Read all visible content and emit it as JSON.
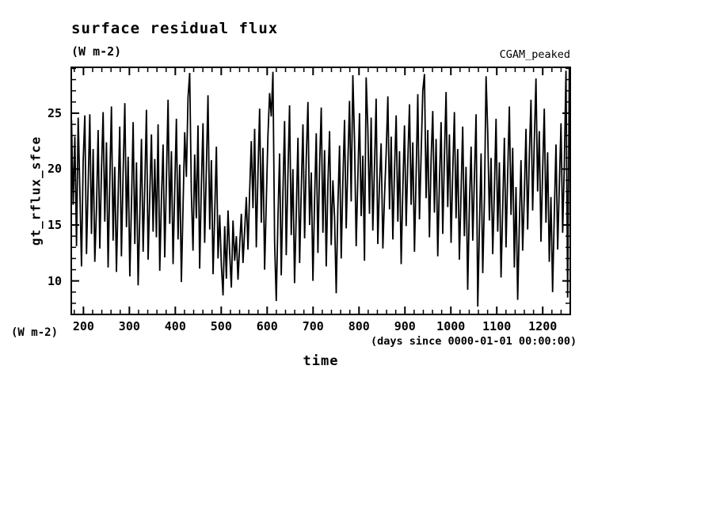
{
  "page": {
    "background": "#ffffff",
    "foreground": "#000000"
  },
  "chart_data": {
    "type": "line",
    "title": "surface residual flux",
    "title_units": "(W m-2)",
    "annotation_top_right": "CGAM_peaked",
    "xlabel": "time",
    "xlabel_sub": "(days since 0000-01-01 00:00:00)",
    "ylabel": "gt_rflux_sfce",
    "ylabel_units": "(W m-2)",
    "grid": false,
    "legend": "none",
    "line_color": "#000000",
    "xlim": [
      173.5,
      1260
    ],
    "ylim": [
      7,
      29.1
    ],
    "xticks": [
      200,
      300,
      400,
      500,
      600,
      700,
      800,
      900,
      1000,
      1100,
      1200
    ],
    "yticks": [
      10,
      15,
      20,
      25
    ],
    "x_minor_step": 20,
    "y_minor_step": 1,
    "series": [
      {
        "name": "gt_rflux_sfce",
        "x_start": 174,
        "x_step": 3.625,
        "values": [
          24.4,
          16.8,
          22.9,
          13.1,
          24.6,
          18.2,
          11.3,
          20.7,
          24.8,
          12.4,
          18.6,
          24.9,
          14.2,
          21.8,
          11.7,
          16.4,
          23.5,
          12.9,
          19.8,
          25.1,
          15.3,
          22.4,
          11.2,
          18.8,
          25.6,
          13.6,
          20.2,
          10.8,
          17.4,
          23.8,
          12.2,
          19.5,
          25.9,
          14.8,
          21.1,
          10.4,
          16.9,
          24.2,
          13.3,
          20.6,
          9.6,
          15.8,
          22.7,
          12.6,
          18.4,
          25.3,
          11.9,
          17.7,
          23.1,
          14.4,
          20.9,
          13.9,
          24.0,
          10.9,
          17.2,
          22.2,
          12.1,
          19.1,
          26.2,
          15.1,
          21.6,
          11.5,
          18.1,
          24.5,
          13.7,
          20.4,
          9.9,
          16.6,
          23.3,
          19.3,
          26.4,
          28.6,
          17.9,
          12.7,
          21.3,
          15.6,
          23.9,
          11.1,
          18.5,
          24.1,
          13.4,
          19.9,
          26.6,
          14.6,
          20.8,
          10.6,
          16.1,
          22.0,
          12.0,
          15.9,
          11.4,
          8.7,
          14.9,
          10.2,
          16.3,
          12.5,
          9.4,
          15.4,
          11.8,
          14.0,
          10.1,
          13.2,
          16.0,
          11.6,
          14.5,
          17.5,
          12.8,
          18.0,
          22.5,
          16.5,
          23.6,
          13.0,
          19.6,
          25.4,
          15.2,
          21.9,
          11.0,
          17.0,
          23.0,
          26.8,
          24.7,
          28.7,
          13.5,
          8.2,
          15.5,
          21.4,
          10.5,
          17.8,
          24.3,
          12.3,
          19.4,
          25.7,
          14.1,
          20.0,
          9.8,
          16.2,
          22.8,
          11.6,
          18.3,
          24.0,
          13.8,
          21.0,
          26.0,
          15.0,
          19.7,
          10.0,
          17.3,
          23.2,
          12.5,
          20.3,
          25.5,
          14.3,
          21.7,
          11.3,
          18.7,
          23.4,
          13.2,
          19.0,
          15.7,
          8.9,
          16.7,
          22.1,
          12.0,
          18.9,
          24.4,
          14.7,
          20.5,
          26.1,
          17.1,
          28.4,
          22.6,
          13.1,
          19.2,
          25.0,
          15.8,
          21.2,
          11.8,
          28.2,
          23.7,
          16.0,
          24.6,
          14.5,
          20.1,
          26.3,
          13.3,
          18.6,
          22.3,
          12.9,
          17.6,
          21.5,
          26.5,
          16.4,
          22.9,
          13.7,
          19.9,
          24.8,
          15.3,
          21.6,
          11.5,
          18.2,
          23.9,
          14.9,
          20.7,
          25.8,
          16.8,
          22.4,
          12.6,
          19.5,
          26.7,
          15.5,
          21.3,
          27.0,
          28.5,
          17.4,
          23.5,
          13.9,
          20.9,
          25.2,
          16.1,
          22.7,
          12.2,
          18.8,
          24.2,
          14.2,
          21.1,
          26.9,
          16.6,
          23.1,
          13.4,
          19.7,
          25.1,
          15.6,
          21.8,
          11.9,
          17.9,
          23.8,
          14.0,
          20.2,
          9.2,
          16.9,
          22.0,
          13.6,
          19.3,
          24.9,
          7.7,
          14.8,
          21.4,
          10.7,
          17.2,
          28.3,
          23.3,
          15.4,
          21.0,
          12.4,
          18.1,
          24.5,
          14.4,
          20.6,
          10.3,
          16.5,
          22.8,
          13.0,
          19.6,
          25.6,
          15.9,
          21.9,
          11.2,
          18.4,
          8.3,
          15.0,
          20.8,
          12.7,
          17.7,
          23.6,
          14.6,
          21.2,
          26.2,
          16.3,
          22.5,
          28.1,
          18.0,
          23.4,
          13.5,
          19.8,
          25.4,
          15.2,
          21.5,
          11.7,
          17.5,
          9.0,
          16.2,
          22.2,
          12.8,
          18.6,
          24.1,
          14.3,
          20.4,
          28.8,
          8.5,
          29.0
        ]
      }
    ]
  }
}
